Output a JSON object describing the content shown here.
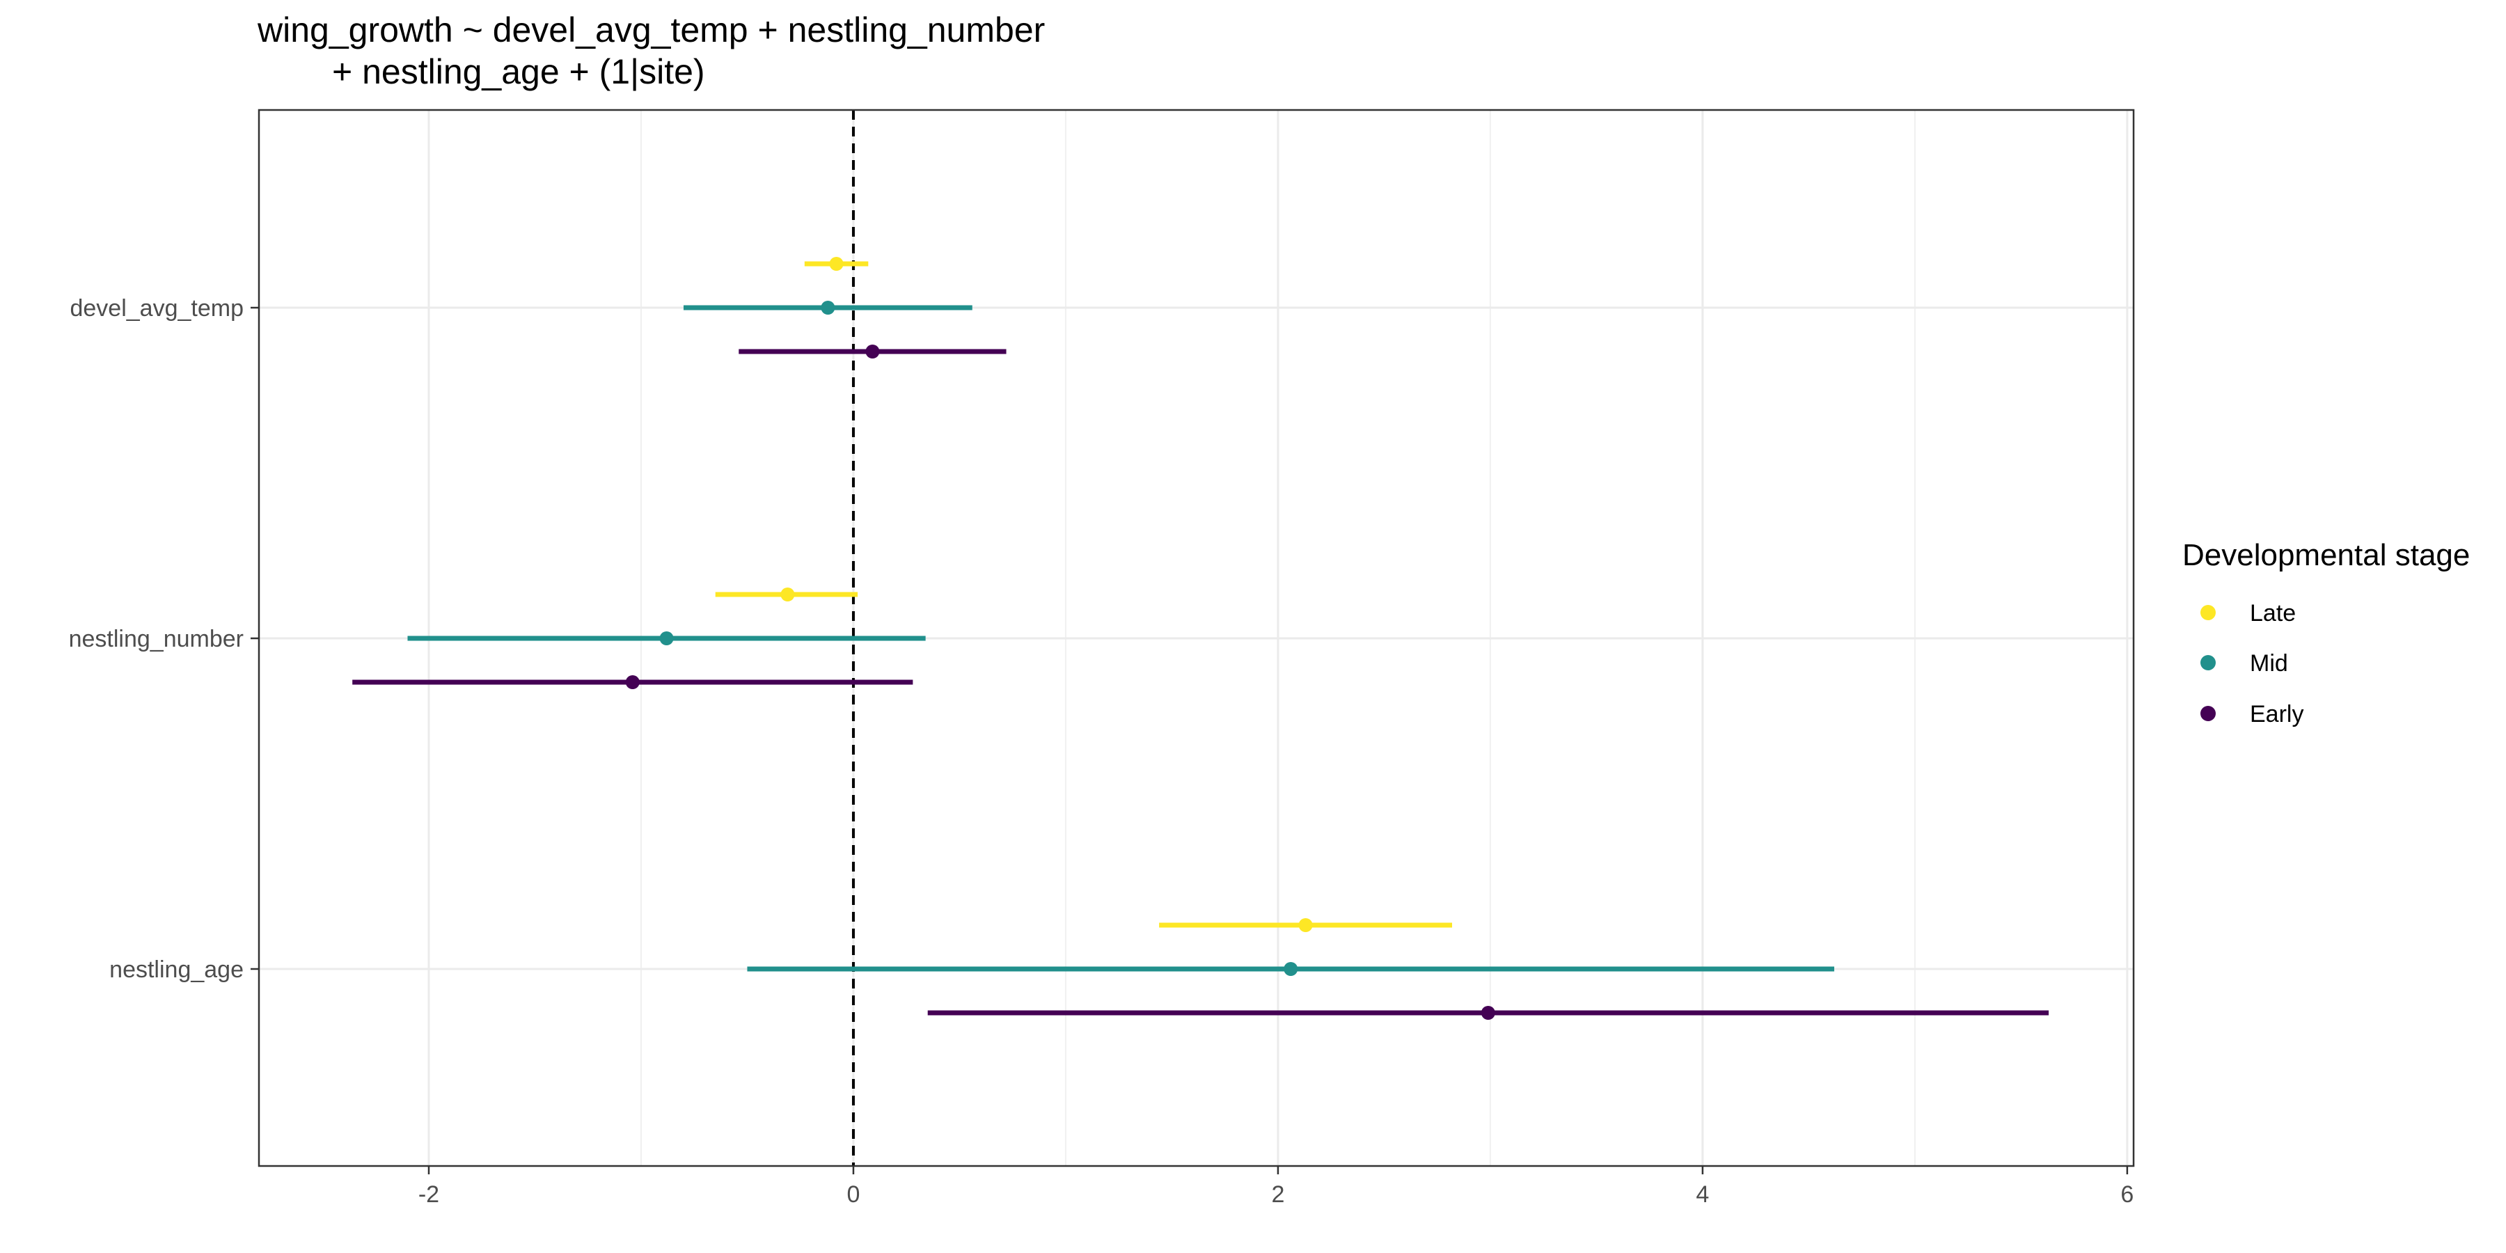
{
  "chart_data": {
    "type": "scatter",
    "subtype": "coefficient-forest-plot",
    "title_lines": [
      "wing_growth ~ devel_avg_temp + nestling_number",
      "+ nestling_age + (1|site)"
    ],
    "xlabel": "",
    "ylabel": "",
    "xlim": [
      -2.8,
      6.03
    ],
    "xticks": [
      -2,
      0,
      2,
      4,
      6
    ],
    "categories": [
      "devel_avg_temp",
      "nestling_number",
      "nestling_age"
    ],
    "reference_line": {
      "x": 0,
      "style": "dashed",
      "color": "#000000"
    },
    "grid": true,
    "legend": {
      "title": "Developmental stage",
      "position": "right"
    },
    "series": [
      {
        "name": "Late",
        "color": "#FDE725",
        "points": [
          {
            "term": "devel_avg_temp",
            "estimate": -0.08,
            "low": -0.23,
            "high": 0.07
          },
          {
            "term": "nestling_number",
            "estimate": -0.31,
            "low": -0.65,
            "high": 0.02
          },
          {
            "term": "nestling_age",
            "estimate": 2.13,
            "low": 1.44,
            "high": 2.82
          }
        ]
      },
      {
        "name": "Mid",
        "color": "#21908C",
        "points": [
          {
            "term": "devel_avg_temp",
            "estimate": -0.12,
            "low": -0.8,
            "high": 0.56
          },
          {
            "term": "nestling_number",
            "estimate": -0.88,
            "low": -2.1,
            "high": 0.34
          },
          {
            "term": "nestling_age",
            "estimate": 2.06,
            "low": -0.5,
            "high": 4.62
          }
        ]
      },
      {
        "name": "Early",
        "color": "#440154",
        "points": [
          {
            "term": "devel_avg_temp",
            "estimate": 0.09,
            "low": -0.54,
            "high": 0.72
          },
          {
            "term": "nestling_number",
            "estimate": -1.04,
            "low": -2.36,
            "high": 0.28
          },
          {
            "term": "nestling_age",
            "estimate": 2.99,
            "low": 0.35,
            "high": 5.63
          }
        ]
      }
    ]
  }
}
